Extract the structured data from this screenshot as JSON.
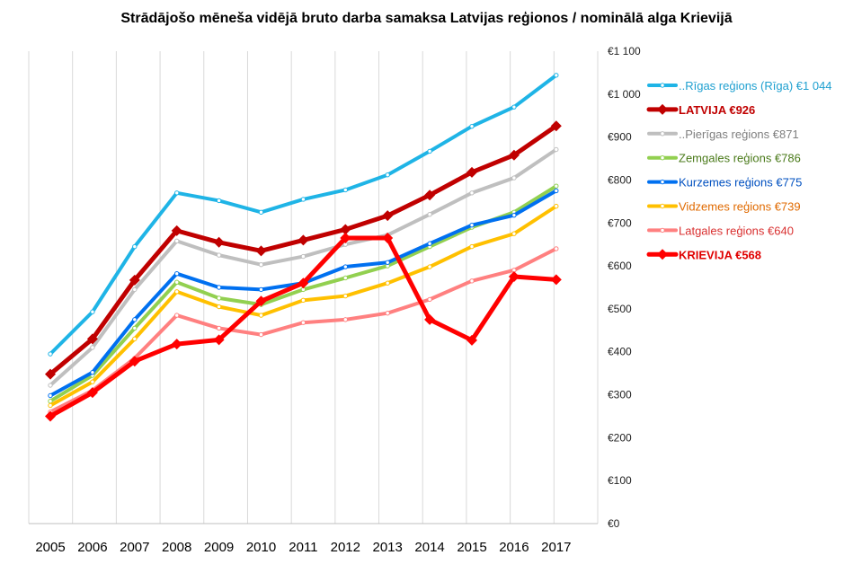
{
  "chart_data": {
    "type": "line",
    "title": "Strādājošo mēneša vidējā bruto darba samaksa Latvijas reģionos / nominālā alga Krievijā",
    "xlabel": "",
    "ylabel": "",
    "ylim": [
      0,
      1100
    ],
    "yticks": [
      {
        "value": 0,
        "label": "€0"
      },
      {
        "value": 100,
        "label": "€100"
      },
      {
        "value": 200,
        "label": "€200"
      },
      {
        "value": 300,
        "label": "€300"
      },
      {
        "value": 400,
        "label": "€400"
      },
      {
        "value": 500,
        "label": "€500"
      },
      {
        "value": 600,
        "label": "€600"
      },
      {
        "value": 700,
        "label": "€700"
      },
      {
        "value": 800,
        "label": "€800"
      },
      {
        "value": 900,
        "label": "€900"
      },
      {
        "value": 1000,
        "label": "€1 000"
      },
      {
        "value": 1100,
        "label": "€1 100"
      }
    ],
    "categories": [
      "2005",
      "2006",
      "2007",
      "2008",
      "2009",
      "2010",
      "2011",
      "2012",
      "2013",
      "2014",
      "2015",
      "2016",
      "2017"
    ],
    "grid": "vertical",
    "legend_position": "right",
    "series": [
      {
        "name": "..Pierīgas reģions €871",
        "color": "#bfbfbf",
        "label_color": "#7f7f7f",
        "bold": false,
        "marker": "circle",
        "values": [
          322,
          410,
          545,
          658,
          625,
          603,
          622,
          650,
          672,
          720,
          770,
          805,
          871
        ]
      },
      {
        "name": "Zemgales reģions €786",
        "color": "#92d050",
        "label_color": "#4a7a1a",
        "bold": false,
        "marker": "circle",
        "values": [
          285,
          345,
          455,
          562,
          525,
          510,
          545,
          572,
          600,
          645,
          690,
          725,
          786
        ]
      },
      {
        "name": "Kurzemes reģions €775",
        "color": "#0070f0",
        "label_color": "#0050c0",
        "bold": false,
        "marker": "circle",
        "values": [
          298,
          352,
          475,
          582,
          550,
          545,
          560,
          598,
          608,
          652,
          695,
          718,
          775
        ]
      },
      {
        "name": "Vidzemes reģions €739",
        "color": "#ffc000",
        "label_color": "#e06a00",
        "bold": false,
        "marker": "circle",
        "values": [
          275,
          330,
          430,
          540,
          505,
          485,
          520,
          530,
          560,
          598,
          645,
          675,
          739
        ]
      },
      {
        "name": "Latgales reģions €640",
        "color": "#ff8080",
        "label_color": "#d93030",
        "bold": false,
        "marker": "circle",
        "values": [
          260,
          310,
          385,
          485,
          455,
          440,
          468,
          475,
          490,
          522,
          565,
          590,
          640
        ]
      },
      {
        "name": "..Rīgas reģions (Rīga) €1 044",
        "color": "#1fb4e6",
        "label_color": "#1fa0d0",
        "bold": false,
        "marker": "circle",
        "values": [
          395,
          493,
          645,
          770,
          752,
          725,
          755,
          777,
          812,
          867,
          925,
          970,
          1044
        ]
      },
      {
        "name": "LATVIJA €926",
        "color": "#c00000",
        "label_color": "#c00000",
        "bold": true,
        "marker": "diamond",
        "values": [
          348,
          430,
          567,
          682,
          655,
          635,
          660,
          685,
          717,
          765,
          818,
          858,
          926
        ]
      },
      {
        "name": "KRIEVIJA €568",
        "color": "#ff0000",
        "label_color": "#e00000",
        "bold": true,
        "marker": "diamond",
        "values": [
          250,
          305,
          378,
          418,
          428,
          518,
          560,
          665,
          665,
          475,
          427,
          575,
          568
        ]
      }
    ],
    "legend_order": [
      5,
      6,
      0,
      1,
      2,
      3,
      4,
      7
    ]
  }
}
